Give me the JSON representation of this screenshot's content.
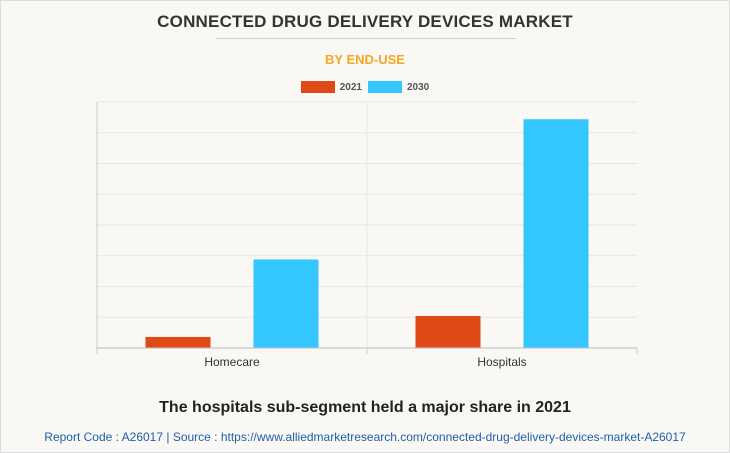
{
  "chart_data": {
    "type": "bar",
    "title": "CONNECTED DRUG DELIVERY DEVICES MARKET",
    "subtitle": "BY END-USE",
    "categories": [
      "Homecare",
      "Hospitals"
    ],
    "series": [
      {
        "name": "2021",
        "color": "#e04a17",
        "values": [
          0.45,
          1.3
        ]
      },
      {
        "name": "2030",
        "color": "#33c6ff",
        "values": [
          3.6,
          9.3
        ]
      }
    ],
    "ylim": [
      0,
      10
    ],
    "grid": true,
    "legend_position": "top-center",
    "xlabel": "",
    "ylabel": ""
  },
  "caption": "The hospitals sub-segment held a major share in 2021",
  "footer": {
    "text": "Report Code : A26017  |  Source : https://www.alliedmarketresearch.com/connected-drug-delivery-devices-market-A26017"
  }
}
